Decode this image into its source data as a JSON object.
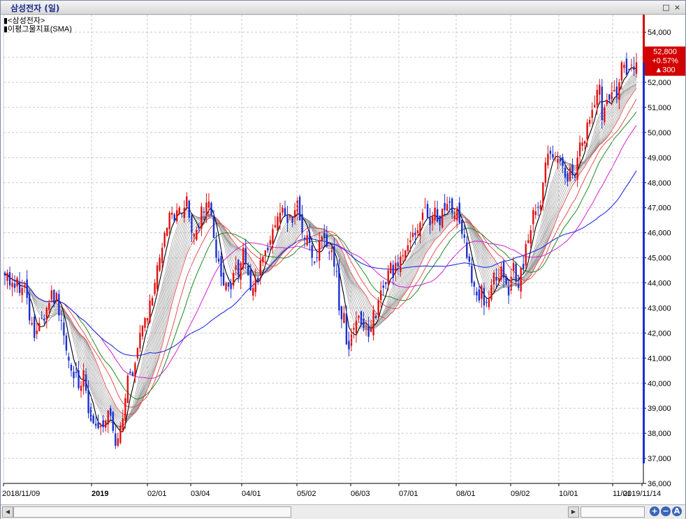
{
  "window": {
    "title": "삼성전자 (일)",
    "buttons": [
      "□",
      "×"
    ]
  },
  "legend": {
    "line1": "<삼성전자>",
    "line2": "이평그물지표(SMA)"
  },
  "price_tag": {
    "price": "52,800",
    "change_pct": "+0.57%",
    "change_abs": "▲300",
    "color": "#d40000"
  },
  "chart_data": {
    "type": "candlestick",
    "y_ticks": [
      "54,000",
      "53,000",
      "52,000",
      "51,000",
      "50,000",
      "49,000",
      "48,000",
      "47,000",
      "46,000",
      "45,000",
      "44,000",
      "43,000",
      "42,000",
      "41,000",
      "40,000",
      "39,000",
      "38,000",
      "37,000",
      "36,000"
    ],
    "ylim": [
      36000,
      54700
    ],
    "x_ticks": [
      "2018/11/09",
      "2019",
      "02/01",
      "03/04",
      "04/01",
      "05/02",
      "06/03",
      "07/01",
      "08/01",
      "09/02",
      "10/01",
      "11/01",
      "2019/11/14"
    ],
    "grid": true,
    "colors": {
      "up": "#e01010",
      "down": "#1a2ed0",
      "ma_short": "#000000",
      "ma_mid": "#208a20",
      "ma_mag": "#d020d0",
      "ma_long": "#2030e0",
      "ma_red": "#e04040",
      "ma_grey": "#9a9a9a"
    },
    "closes": [
      44300,
      44400,
      43900,
      44000,
      43800,
      44200,
      43600,
      43800,
      43900,
      43400,
      42500,
      42400,
      41800,
      42100,
      42400,
      42600,
      42500,
      43000,
      43200,
      43700,
      43200,
      43600,
      42700,
      42500,
      41900,
      41300,
      40900,
      40500,
      40200,
      40400,
      39800,
      39900,
      40500,
      39700,
      38800,
      38500,
      38400,
      38300,
      38200,
      38300,
      38250,
      38500,
      38900,
      38700,
      38100,
      37500,
      37800,
      38300,
      38600,
      39400,
      40300,
      40400,
      40300,
      40800,
      41400,
      42000,
      42300,
      42600,
      42600,
      43300,
      43400,
      44000,
      44700,
      45000,
      45400,
      46000,
      46200,
      46800,
      46800,
      46450,
      46900,
      47000,
      46750,
      47000,
      47450,
      46600,
      46000,
      45950,
      46100,
      46200,
      47050,
      46800,
      47200,
      47250,
      46700,
      45800,
      45000,
      44850,
      44250,
      43900,
      44000,
      43850,
      43750,
      44400,
      44700,
      44300,
      44800,
      45400,
      44800,
      44300,
      43700,
      43800,
      44200,
      44100,
      44900,
      45050,
      45300,
      45300,
      45700,
      46150,
      46300,
      46650,
      46800,
      47000,
      46700,
      46400,
      46700,
      46400,
      46900,
      47300,
      46500,
      46000,
      45750,
      45900,
      45600,
      45000,
      44800,
      45000,
      45700,
      45850,
      45800,
      45450,
      45200,
      45300,
      44650,
      44450,
      42900,
      42550,
      42800,
      41550,
      41350,
      41950,
      42200,
      42500,
      42700,
      42350,
      42200,
      42300,
      41850,
      42150,
      42900,
      42600,
      43300,
      43700,
      43800,
      43950,
      44500,
      44800,
      44200,
      44800,
      44650,
      45050,
      45100,
      45300,
      45500,
      45700,
      46000,
      45900,
      46100,
      46400,
      46800,
      47000,
      46600,
      46300,
      46650,
      47000,
      46450,
      46300,
      46950,
      46900,
      47150,
      47200,
      46800,
      46700,
      47000,
      46400,
      45950,
      45800,
      45000,
      44850,
      44000,
      43850,
      43500,
      43300,
      43900,
      43100,
      43200,
      43350,
      43900,
      44400,
      44100,
      44200,
      44650,
      44200,
      43950,
      43500,
      44250,
      44800,
      44050,
      43800,
      44600,
      44550,
      45550,
      45700,
      46100,
      46900,
      46850,
      47000,
      47100,
      48000,
      48800,
      49150,
      49150,
      49000,
      49000,
      48950,
      48850,
      48650,
      48200,
      48050,
      48600,
      48300,
      48200,
      49000,
      49600,
      49600,
      49650,
      50400,
      50500,
      50900,
      51100,
      51700,
      51900,
      50500,
      51000,
      51300,
      51300,
      51600,
      51700,
      51400,
      52000,
      52800,
      52700,
      52300,
      52500,
      52700,
      52500,
      52800
    ]
  },
  "scrollbar": {
    "left_arrow": "◀",
    "right_arrow": "▶",
    "zoom_in": "+",
    "zoom_out": "−",
    "reset": "A"
  }
}
